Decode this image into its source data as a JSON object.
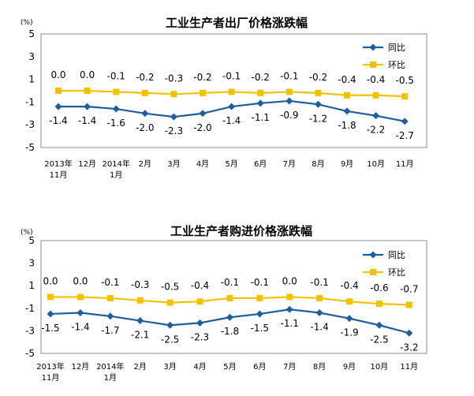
{
  "chart_data": [
    {
      "type": "line",
      "title": "工业生产者出厂价格涨跌幅",
      "unit_label": "(%)",
      "ylim": [
        -5,
        5
      ],
      "yticks": [
        "5",
        "3",
        "1",
        "-1",
        "-3",
        "-5"
      ],
      "categories": [
        [
          "2013年",
          "11月"
        ],
        [
          "12月"
        ],
        [
          "2014年",
          "1月"
        ],
        [
          "2月"
        ],
        [
          "3月"
        ],
        [
          "4月"
        ],
        [
          "5月"
        ],
        [
          "6月"
        ],
        [
          "7月"
        ],
        [
          "8月"
        ],
        [
          "9月"
        ],
        [
          "10月"
        ],
        [
          "11月"
        ]
      ],
      "series": [
        {
          "name": "同比",
          "color": "#1f5e9e",
          "marker": "diamond",
          "values": [
            -1.4,
            -1.4,
            -1.6,
            -2.0,
            -2.3,
            -2.0,
            -1.4,
            -1.1,
            -0.9,
            -1.2,
            -1.8,
            -2.2,
            -2.7
          ]
        },
        {
          "name": "环比",
          "color": "#f2c200",
          "marker": "square",
          "values": [
            0.0,
            0.0,
            -0.1,
            -0.2,
            -0.3,
            -0.2,
            -0.1,
            -0.2,
            -0.1,
            -0.2,
            -0.4,
            -0.4,
            -0.5
          ]
        }
      ],
      "legend": "top-right",
      "grid": false
    },
    {
      "type": "line",
      "title": "工业生产者购进价格涨跌幅",
      "unit_label": "(%)",
      "ylim": [
        -5,
        5
      ],
      "yticks": [
        "5",
        "3",
        "1",
        "-1",
        "-3",
        "-5"
      ],
      "categories": [
        [
          "2013年",
          "11月"
        ],
        [
          "12月"
        ],
        [
          "2014年",
          "1月"
        ],
        [
          "2月"
        ],
        [
          "3月"
        ],
        [
          "4月"
        ],
        [
          "5月"
        ],
        [
          "6月"
        ],
        [
          "7月"
        ],
        [
          "8月"
        ],
        [
          "9月"
        ],
        [
          "10月"
        ],
        [
          "11月"
        ]
      ],
      "series": [
        {
          "name": "同比",
          "color": "#1f5e9e",
          "marker": "diamond",
          "values": [
            -1.5,
            -1.4,
            -1.7,
            -2.1,
            -2.5,
            -2.3,
            -1.8,
            -1.5,
            -1.1,
            -1.4,
            -1.9,
            -2.5,
            -3.2
          ]
        },
        {
          "name": "环比",
          "color": "#f2c200",
          "marker": "square",
          "values": [
            0.0,
            0.0,
            -0.1,
            -0.3,
            -0.5,
            -0.4,
            -0.1,
            -0.1,
            0.0,
            -0.1,
            -0.4,
            -0.6,
            -0.7
          ]
        }
      ],
      "legend": "top-right",
      "grid": false
    }
  ]
}
